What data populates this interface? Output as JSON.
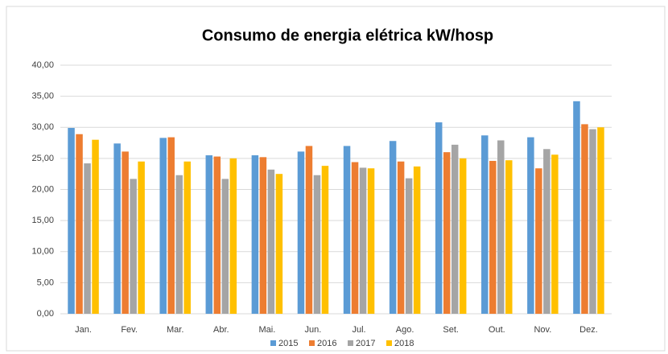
{
  "chart_data": {
    "type": "bar",
    "title": "Consumo de energia elétrica kW/hosp",
    "categories": [
      "Jan.",
      "Fev.",
      "Mar.",
      "Abr.",
      "Mai.",
      "Jun.",
      "Jul.",
      "Ago.",
      "Set.",
      "Out.",
      "Nov.",
      "Dez."
    ],
    "series": [
      {
        "name": "2015",
        "color": "#5b9bd5",
        "values": [
          29.9,
          27.4,
          28.3,
          25.5,
          25.5,
          26.1,
          27.0,
          27.8,
          30.8,
          28.7,
          28.4,
          34.2
        ]
      },
      {
        "name": "2016",
        "color": "#ed7d31",
        "values": [
          28.9,
          26.1,
          28.4,
          25.3,
          25.2,
          27.0,
          24.4,
          24.5,
          26.0,
          24.6,
          23.4,
          30.5
        ]
      },
      {
        "name": "2017",
        "color": "#a5a5a5",
        "values": [
          24.2,
          21.7,
          22.3,
          21.7,
          23.2,
          22.3,
          23.5,
          21.8,
          27.2,
          27.9,
          26.5,
          29.7
        ]
      },
      {
        "name": "2018",
        "color": "#ffc000",
        "values": [
          28.0,
          24.5,
          24.5,
          25.0,
          22.5,
          23.8,
          23.4,
          23.7,
          25.0,
          24.7,
          25.6,
          30.0
        ]
      }
    ],
    "ylim": [
      0,
      40
    ],
    "yticks": [
      {
        "value": 0,
        "label": "0,00"
      },
      {
        "value": 5,
        "label": "5,00"
      },
      {
        "value": 10,
        "label": "10,00"
      },
      {
        "value": 15,
        "label": "15,00"
      },
      {
        "value": 20,
        "label": "20,00"
      },
      {
        "value": 25,
        "label": "25,00"
      },
      {
        "value": 30,
        "label": "30,00"
      },
      {
        "value": 35,
        "label": "35,00"
      },
      {
        "value": 40,
        "label": "40,00"
      }
    ],
    "grid": true,
    "legend": "bottom"
  }
}
